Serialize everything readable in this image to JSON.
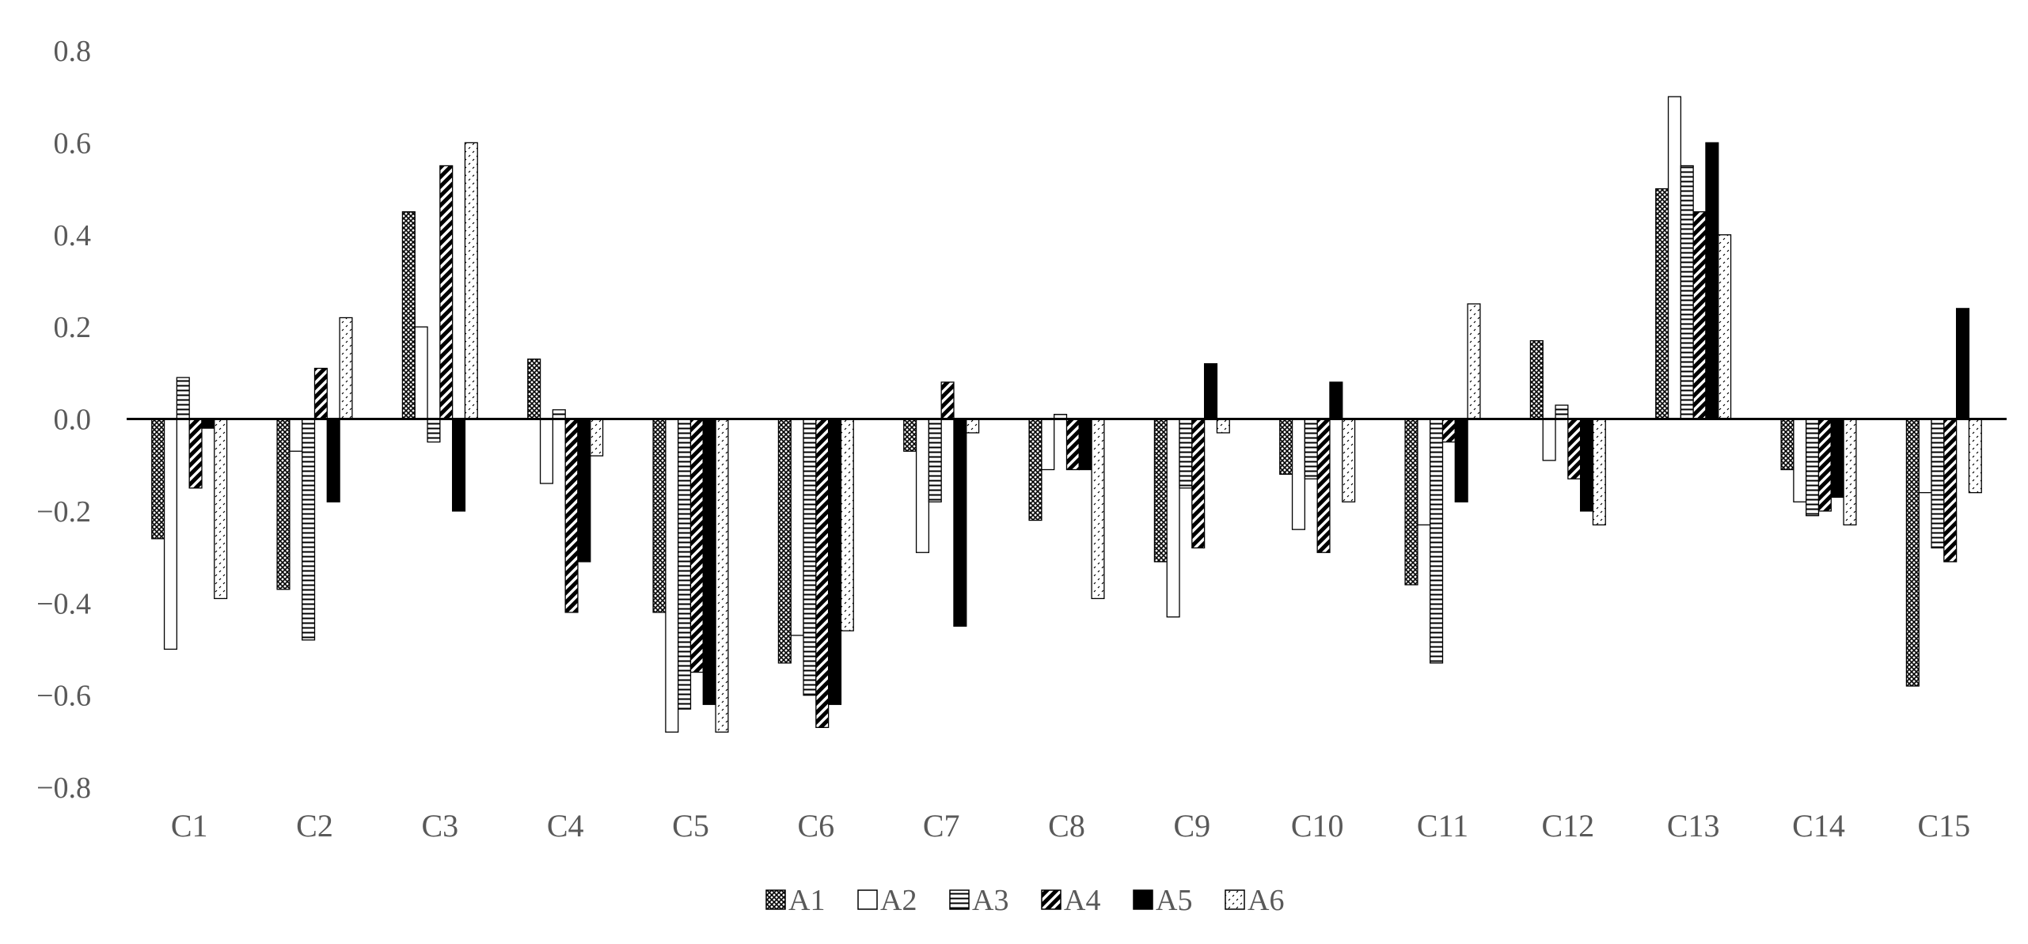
{
  "chart_data": {
    "type": "bar",
    "title": "",
    "xlabel": "",
    "ylabel": "",
    "ylim": [
      -0.8,
      0.8
    ],
    "yticks": [
      -0.8,
      -0.6,
      -0.4,
      -0.2,
      0.0,
      0.2,
      0.4,
      0.6,
      0.8
    ],
    "ytick_labels": [
      "−0.8",
      "−0.6",
      "−0.4",
      "−0.2",
      "0.0",
      "0.2",
      "0.4",
      "0.6",
      "0.8"
    ],
    "grid": false,
    "legend_position": "bottom-center",
    "categories": [
      "C1",
      "C2",
      "C3",
      "C4",
      "C5",
      "C6",
      "C7",
      "C8",
      "C9",
      "C10",
      "C11",
      "C12",
      "C13",
      "C14",
      "C15"
    ],
    "series": [
      {
        "name": "A1",
        "pattern": "crosshatch",
        "values": [
          -0.26,
          -0.37,
          0.45,
          0.13,
          -0.42,
          -0.53,
          -0.07,
          -0.22,
          -0.31,
          -0.12,
          -0.36,
          0.17,
          0.5,
          -0.11,
          -0.58
        ]
      },
      {
        "name": "A2",
        "pattern": "empty",
        "values": [
          -0.5,
          -0.07,
          0.2,
          -0.14,
          -0.68,
          -0.47,
          -0.29,
          -0.11,
          -0.43,
          -0.24,
          -0.23,
          -0.09,
          0.7,
          -0.18,
          -0.16
        ]
      },
      {
        "name": "A3",
        "pattern": "horizontal",
        "values": [
          0.09,
          -0.48,
          -0.05,
          0.02,
          -0.63,
          -0.6,
          -0.18,
          0.01,
          -0.15,
          -0.13,
          -0.53,
          0.03,
          0.55,
          -0.21,
          -0.28
        ]
      },
      {
        "name": "A4",
        "pattern": "diagonal",
        "values": [
          -0.15,
          0.11,
          0.55,
          -0.42,
          -0.55,
          -0.67,
          0.08,
          -0.11,
          -0.28,
          -0.29,
          -0.05,
          -0.13,
          0.45,
          -0.2,
          -0.31
        ]
      },
      {
        "name": "A5",
        "pattern": "solid",
        "values": [
          -0.02,
          -0.18,
          -0.2,
          -0.31,
          -0.62,
          -0.62,
          -0.45,
          -0.11,
          0.12,
          0.08,
          -0.18,
          -0.2,
          0.6,
          -0.17,
          0.24
        ]
      },
      {
        "name": "A6",
        "pattern": "sparse",
        "values": [
          -0.39,
          0.22,
          0.6,
          -0.08,
          -0.68,
          -0.46,
          -0.03,
          -0.39,
          -0.03,
          -0.18,
          0.25,
          -0.23,
          0.4,
          -0.23,
          -0.16
        ]
      }
    ],
    "colors": {
      "axis": "#000000",
      "bar_stroke": "#000000",
      "bar_fill": "#000000",
      "text": "#595959"
    }
  }
}
